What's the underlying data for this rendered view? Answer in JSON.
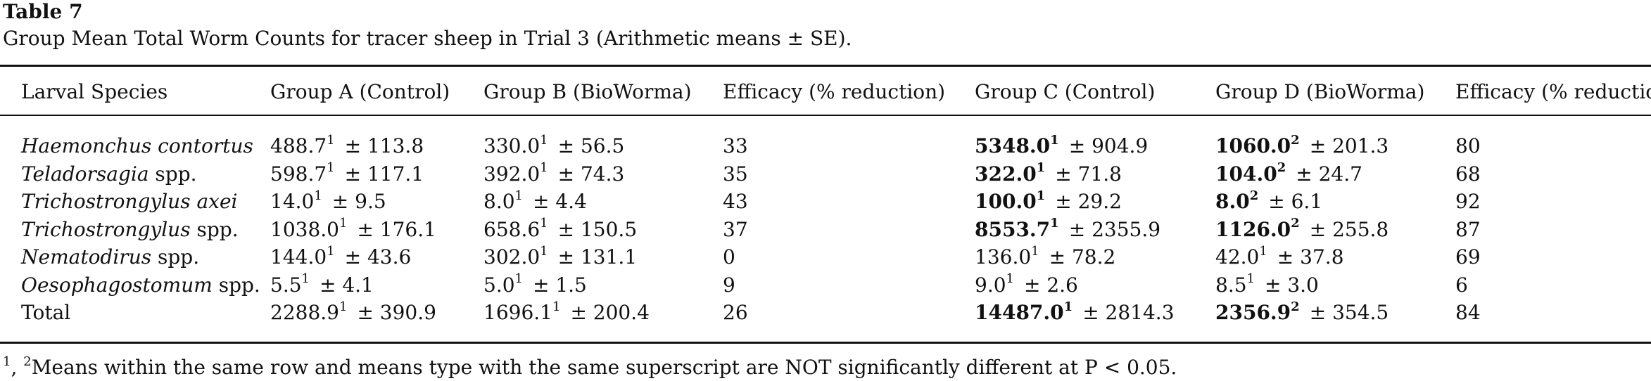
{
  "table": {
    "title": "Table 7",
    "caption": "Group Mean Total Worm Counts for tracer sheep in Trial 3 (Arithmetic means ± SE).",
    "headers": [
      "Larval Species",
      "Group A (Control)",
      "Group B (BioWorma)",
      "Efficacy (% reduction)",
      "Group C (Control)",
      "Group D (BioWorma)",
      "Efficacy (% reduction"
    ],
    "rows": [
      {
        "species_italic": "Haemonchus contortus",
        "species_plain": "",
        "a": {
          "mean": "488.7",
          "sup": "1",
          "se": "± 113.8",
          "bold": false
        },
        "b": {
          "mean": "330.0",
          "sup": "1",
          "se": "± 56.5",
          "bold": false
        },
        "eff1": "33",
        "c": {
          "mean": "5348.0",
          "sup": "1",
          "se": "± 904.9",
          "bold": true
        },
        "d": {
          "mean": "1060.0",
          "sup": "2",
          "se": "± 201.3",
          "bold": true
        },
        "eff2": "80"
      },
      {
        "species_italic": "Teladorsagia",
        "species_plain": " spp.",
        "a": {
          "mean": "598.7",
          "sup": "1",
          "se": "± 117.1",
          "bold": false
        },
        "b": {
          "mean": "392.0",
          "sup": "1",
          "se": "± 74.3",
          "bold": false
        },
        "eff1": "35",
        "c": {
          "mean": "322.0",
          "sup": "1",
          "se": "± 71.8",
          "bold": true
        },
        "d": {
          "mean": "104.0",
          "sup": "2",
          "se": "± 24.7",
          "bold": true
        },
        "eff2": "68"
      },
      {
        "species_italic": "Trichostrongylus axei",
        "species_plain": "",
        "a": {
          "mean": "14.0",
          "sup": "1",
          "se": "± 9.5",
          "bold": false
        },
        "b": {
          "mean": "8.0",
          "sup": "1",
          "se": "± 4.4",
          "bold": false
        },
        "eff1": "43",
        "c": {
          "mean": "100.0",
          "sup": "1",
          "se": "± 29.2",
          "bold": true
        },
        "d": {
          "mean": "8.0",
          "sup": "2",
          "se": "± 6.1",
          "bold": true
        },
        "eff2": "92"
      },
      {
        "species_italic": "Trichostrongylus",
        "species_plain": " spp.",
        "a": {
          "mean": "1038.0",
          "sup": "1",
          "se": "± 176.1",
          "bold": false
        },
        "b": {
          "mean": "658.6",
          "sup": "1",
          "se": "± 150.5",
          "bold": false
        },
        "eff1": "37",
        "c": {
          "mean": "8553.7",
          "sup": "1",
          "se": "± 2355.9",
          "bold": true
        },
        "d": {
          "mean": "1126.0",
          "sup": "2",
          "se": "± 255.8",
          "bold": true
        },
        "eff2": "87"
      },
      {
        "species_italic": "Nematodirus",
        "species_plain": " spp.",
        "a": {
          "mean": "144.0",
          "sup": "1",
          "se": "± 43.6",
          "bold": false
        },
        "b": {
          "mean": "302.0",
          "sup": "1",
          "se": "± 131.1",
          "bold": false
        },
        "eff1": "0",
        "c": {
          "mean": "136.0",
          "sup": "1",
          "se": "± 78.2",
          "bold": false
        },
        "d": {
          "mean": "42.0",
          "sup": "1",
          "se": "± 37.8",
          "bold": false
        },
        "eff2": "69"
      },
      {
        "species_italic": "Oesophagostomum",
        "species_plain": " spp.",
        "a": {
          "mean": "5.5",
          "sup": "1",
          "se": "± 4.1",
          "bold": false
        },
        "b": {
          "mean": "5.0",
          "sup": "1",
          "se": "± 1.5",
          "bold": false
        },
        "eff1": "9",
        "c": {
          "mean": "9.0",
          "sup": "1",
          "se": "± 2.6",
          "bold": false
        },
        "d": {
          "mean": "8.5",
          "sup": "1",
          "se": "± 3.0",
          "bold": false
        },
        "eff2": "6"
      },
      {
        "species_italic": "",
        "species_plain": "Total",
        "a": {
          "mean": "2288.9",
          "sup": "1",
          "se": "± 390.9",
          "bold": false
        },
        "b": {
          "mean": "1696.1",
          "sup": "1",
          "se": "± 200.4",
          "bold": false
        },
        "eff1": "26",
        "c": {
          "mean": "14487.0",
          "sup": "1",
          "se": "± 2814.3",
          "bold": true
        },
        "d": {
          "mean": "2356.9",
          "sup": "2",
          "se": "± 354.5",
          "bold": true
        },
        "eff2": "84"
      }
    ],
    "footnote": {
      "sup_a": "1",
      "sep": ", ",
      "sup_b": "2",
      "text": "Means within the same row and means type with the same superscript are NOT significantly different at P < 0.05."
    }
  }
}
